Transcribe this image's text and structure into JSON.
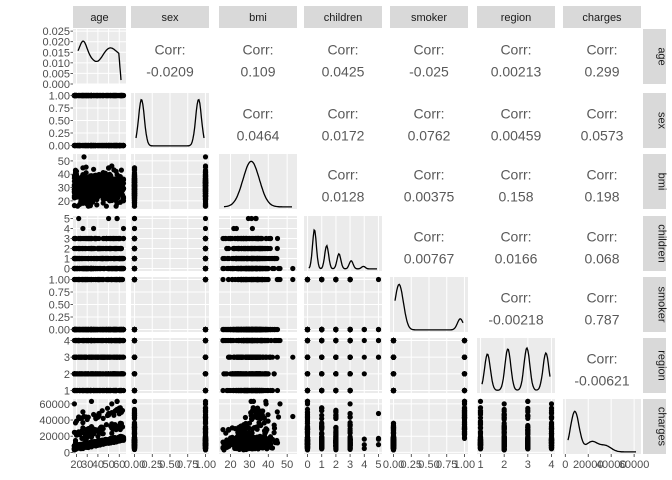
{
  "chart_data": {
    "type": "scatter-matrix",
    "variables": [
      "age",
      "sex",
      "bmi",
      "children",
      "smoker",
      "region",
      "charges"
    ],
    "corr_label": "Corr:",
    "correlations": {
      "0-1": "-0.0209",
      "0-2": "0.109",
      "0-3": "0.0425",
      "0-4": "-0.025",
      "0-5": "0.00213",
      "0-6": "0.299",
      "1-2": "0.0464",
      "1-3": "0.0172",
      "1-4": "0.0762",
      "1-5": "0.00459",
      "1-6": "0.0573",
      "2-3": "0.0128",
      "2-4": "0.00375",
      "2-5": "0.158",
      "2-6": "0.198",
      "3-4": "0.00767",
      "3-5": "0.0166",
      "3-6": "0.068",
      "4-5": "-0.00218",
      "4-6": "0.787",
      "5-6": "-0.00621"
    },
    "x_ticks": {
      "age": [
        "20",
        "30",
        "40",
        "50",
        "60"
      ],
      "sex": [
        "0.00",
        "0.25",
        "0.50",
        "0.75",
        "1.00"
      ],
      "bmi": [
        "20",
        "30",
        "40",
        "50"
      ],
      "children": [
        "0",
        "1",
        "2",
        "3",
        "4",
        "5"
      ],
      "smoker": [
        "0.00",
        "0.25",
        "0.50",
        "0.75",
        "1.00"
      ],
      "region": [
        "1",
        "2",
        "3",
        "4"
      ],
      "charges": [
        "0",
        "20000",
        "40000",
        "60000"
      ]
    },
    "y_ticks": {
      "age": [
        "0.000",
        "0.005",
        "0.010",
        "0.015",
        "0.020",
        "0.025"
      ],
      "sex": [
        "0.00",
        "0.25",
        "0.50",
        "0.75",
        "1.00"
      ],
      "bmi": [
        "20",
        "30",
        "40",
        "50"
      ],
      "children": [
        "0",
        "1",
        "2",
        "3",
        "4",
        "5"
      ],
      "smoker": [
        "0.00",
        "0.25",
        "0.50",
        "0.75",
        "1.00"
      ],
      "region": [
        "1",
        "2",
        "3",
        "4"
      ],
      "charges": [
        "0",
        "20000",
        "40000",
        "60000"
      ]
    },
    "x_ranges": {
      "age": [
        16.7,
        66.3
      ],
      "sex": [
        -0.05,
        1.05
      ],
      "bmi": [
        13.9,
        55.2
      ],
      "children": [
        -0.25,
        5.25
      ],
      "smoker": [
        -0.05,
        1.05
      ],
      "region": [
        0.85,
        4.15
      ],
      "charges": [
        -2000,
        66000
      ]
    },
    "y_ranges": {
      "age": [
        0,
        0.026
      ],
      "sex": [
        -0.05,
        1.05
      ],
      "bmi": [
        13.9,
        55.2
      ],
      "children": [
        -0.25,
        5.25
      ],
      "smoker": [
        -0.05,
        1.05
      ],
      "region": [
        0.85,
        4.15
      ],
      "charges": [
        -2000,
        66000
      ]
    },
    "grid": true
  }
}
